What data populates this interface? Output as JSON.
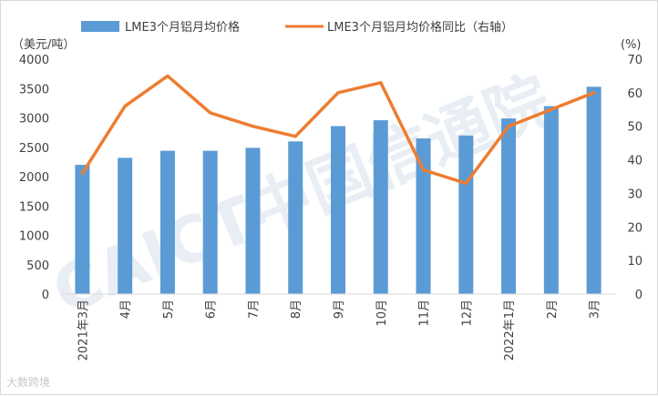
{
  "chart_data": {
    "type": "bar",
    "categories": [
      "2021年3月",
      "4月",
      "5月",
      "6月",
      "7月",
      "8月",
      "9月",
      "10月",
      "11月",
      "12月",
      "2022年1月",
      "2月",
      "3月"
    ],
    "series": [
      {
        "name": "LME3个月铝月均价格",
        "type": "bar",
        "axis": "left",
        "values": [
          2200,
          2320,
          2440,
          2440,
          2490,
          2600,
          2860,
          2960,
          2650,
          2700,
          2990,
          3200,
          3530
        ]
      },
      {
        "name": "LME3个月铝月均价格同比（右轴）",
        "type": "line",
        "axis": "right",
        "values": [
          36,
          56,
          65,
          54,
          50,
          47,
          60,
          63,
          37,
          33,
          50,
          55,
          60
        ]
      }
    ],
    "y_left": {
      "label": "（美元/吨）",
      "min": 0,
      "max": 4000,
      "step": 500
    },
    "y_right": {
      "label": "(%)",
      "min": 0,
      "max": 70,
      "step": 10
    },
    "legend_position": "top"
  },
  "colors": {
    "bar": "#5b9bd5",
    "line": "#ed7d31"
  },
  "watermark": "CAICT中国信通院",
  "credit": "大数跨境"
}
